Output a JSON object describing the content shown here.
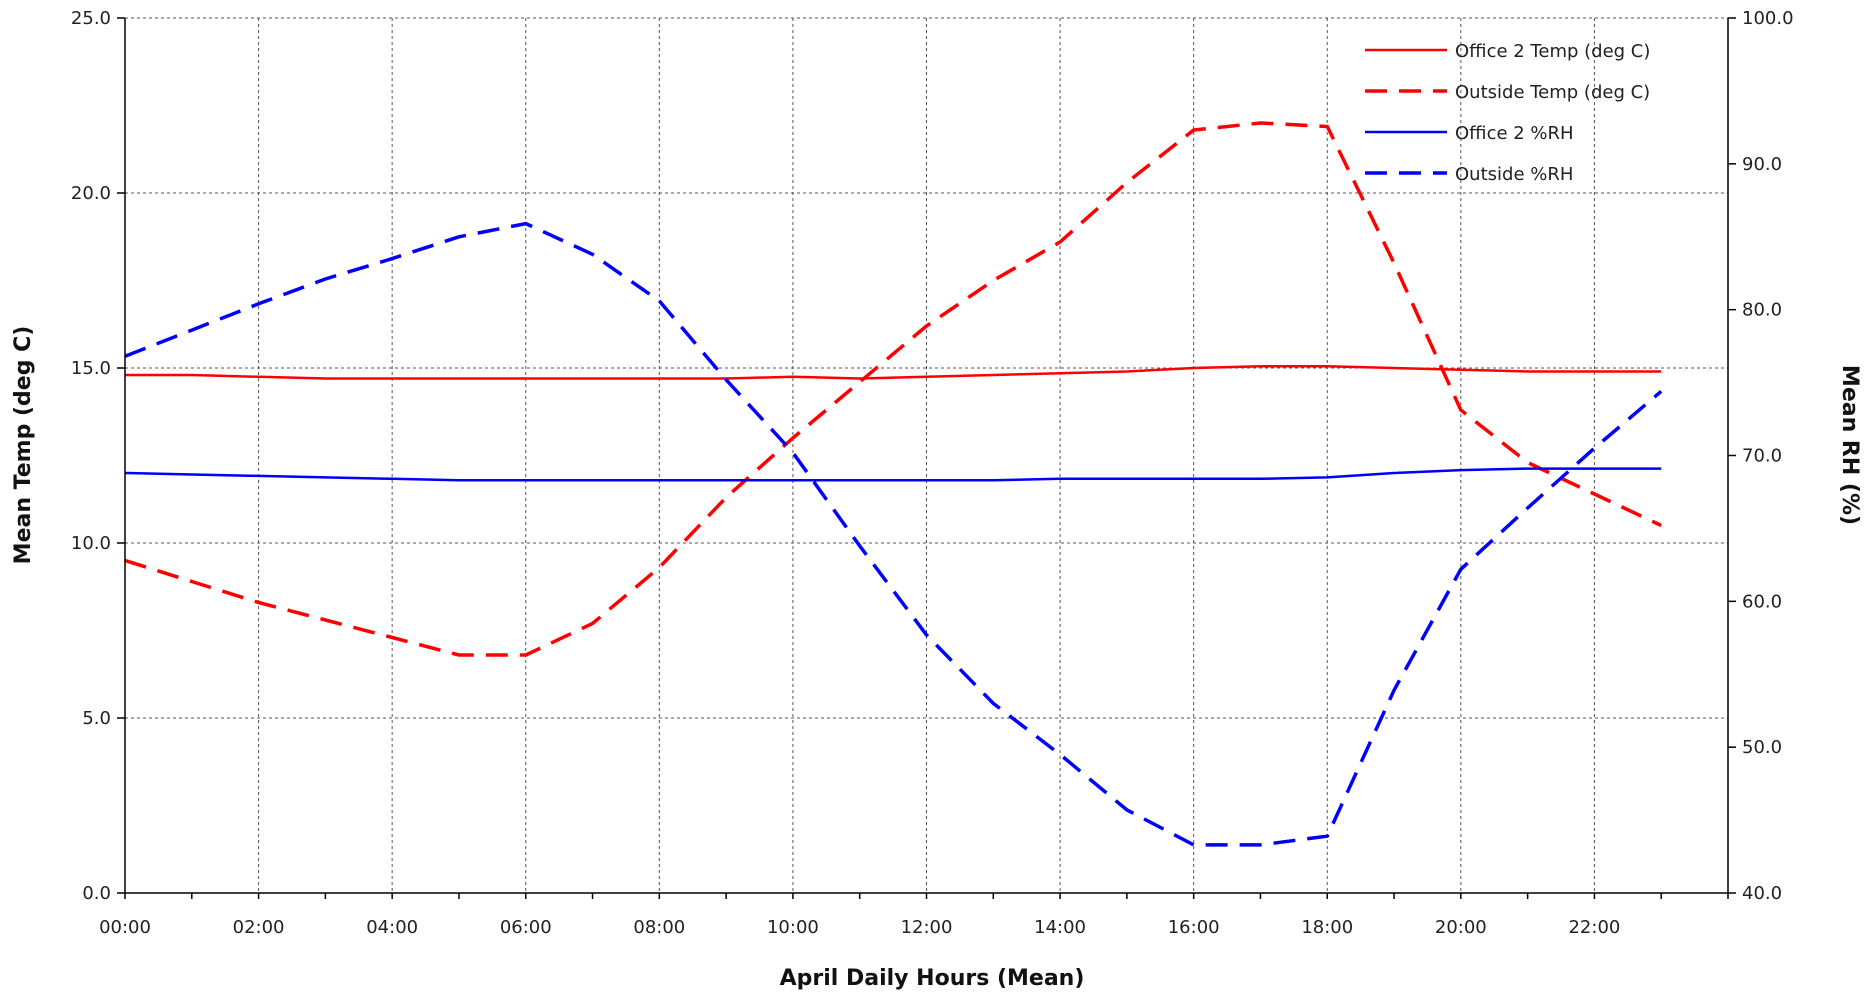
{
  "chart_data": {
    "type": "line",
    "title": "",
    "xlabel": "April Daily Hours (Mean)",
    "ylabel_left": "Mean Temp (deg C)",
    "ylabel_right": "Mean RH (%)",
    "x": [
      "00:00",
      "01:00",
      "02:00",
      "03:00",
      "04:00",
      "05:00",
      "06:00",
      "07:00",
      "08:00",
      "09:00",
      "10:00",
      "11:00",
      "12:00",
      "13:00",
      "14:00",
      "15:00",
      "16:00",
      "17:00",
      "18:00",
      "19:00",
      "20:00",
      "21:00",
      "22:00",
      "23:00"
    ],
    "x_tick_labels": [
      "00:00",
      "02:00",
      "04:00",
      "06:00",
      "08:00",
      "10:00",
      "12:00",
      "14:00",
      "16:00",
      "18:00",
      "20:00",
      "22:00"
    ],
    "y_left_range": [
      0,
      25
    ],
    "y_left_ticks": [
      "0.0",
      "5.0",
      "10.0",
      "15.0",
      "20.0",
      "25.0"
    ],
    "y_right_range": [
      40,
      100
    ],
    "y_right_ticks": [
      "40.0",
      "50.0",
      "60.0",
      "70.0",
      "80.0",
      "90.0",
      "100.0"
    ],
    "grid": true,
    "legend_position": "top-right",
    "series": [
      {
        "name": "Office 2 Temp (deg C)",
        "axis": "left",
        "color": "#ff0000",
        "dashed": false,
        "values": [
          14.8,
          14.8,
          14.75,
          14.7,
          14.7,
          14.7,
          14.7,
          14.7,
          14.7,
          14.7,
          14.75,
          14.7,
          14.75,
          14.8,
          14.85,
          14.9,
          15.0,
          15.05,
          15.05,
          15.0,
          14.95,
          14.9,
          14.9,
          14.9
        ]
      },
      {
        "name": "Outside Temp (deg C)",
        "axis": "left",
        "color": "#ff0000",
        "dashed": true,
        "values": [
          9.5,
          8.9,
          8.3,
          7.8,
          7.3,
          6.8,
          6.8,
          7.7,
          9.3,
          11.3,
          13.0,
          14.6,
          16.2,
          17.5,
          18.6,
          20.3,
          21.8,
          22.0,
          21.9,
          18.0,
          13.8,
          12.3,
          11.4,
          10.5
        ]
      },
      {
        "name": "Office 2 %RH",
        "axis": "right",
        "color": "#0000ff",
        "dashed": false,
        "values": [
          68.8,
          68.7,
          68.6,
          68.5,
          68.4,
          68.3,
          68.3,
          68.3,
          68.3,
          68.3,
          68.3,
          68.3,
          68.3,
          68.3,
          68.4,
          68.4,
          68.4,
          68.4,
          68.5,
          68.8,
          69.0,
          69.1,
          69.1,
          69.1
        ]
      },
      {
        "name": "Outside %RH",
        "axis": "right",
        "color": "#0000ff",
        "dashed": true,
        "values": [
          76.8,
          78.6,
          80.4,
          82.1,
          83.5,
          85.0,
          85.9,
          83.8,
          80.6,
          75.2,
          70.2,
          63.8,
          57.7,
          53.0,
          49.5,
          45.7,
          43.3,
          43.3,
          43.9,
          53.9,
          62.2,
          66.4,
          70.5,
          74.4
        ]
      }
    ]
  }
}
